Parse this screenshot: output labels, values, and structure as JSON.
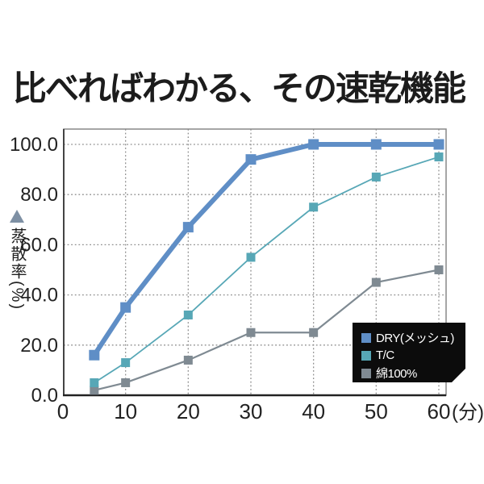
{
  "page": {
    "title": "比べればわかる、その速乾機能"
  },
  "chart_data": {
    "type": "line",
    "x": [
      5,
      10,
      20,
      30,
      40,
      50,
      60
    ],
    "xlim": [
      0,
      60
    ],
    "ylim": [
      0,
      100
    ],
    "x_ticks": [
      0,
      10,
      20,
      30,
      40,
      50,
      60
    ],
    "x_tick_suffix": "(分)",
    "y_ticks": [
      "100.0",
      "80.0",
      "60.0",
      "40.0",
      "20.0",
      "0.0"
    ],
    "y_tick_values": [
      100,
      80,
      60,
      40,
      20,
      0
    ],
    "ylabel": "蒸散率(%)",
    "ylabel_marker": "triangle-up",
    "grid": "dotted",
    "legend_position": "bottom-right-inside",
    "series": [
      {
        "name": "DRY(メッシュ)",
        "values": [
          16,
          35,
          67,
          94,
          100,
          100,
          100
        ],
        "color": "#5f8ec6",
        "marker": "square",
        "line_width": 6,
        "marker_size": 13
      },
      {
        "name": "T/C",
        "values": [
          5,
          13,
          32,
          55,
          75,
          87,
          95
        ],
        "color": "#57a7b6",
        "marker": "square",
        "line_width": 1.8,
        "marker_size": 11
      },
      {
        "name": "綿100%",
        "values": [
          2,
          5,
          14,
          25,
          25,
          45,
          50
        ],
        "color": "#7f8a92",
        "marker": "square",
        "line_width": 2.2,
        "marker_size": 11
      }
    ]
  },
  "colors": {
    "triangle_marker": "#7e90a4",
    "legend_background": "#0c0c0c",
    "legend_text": "#ffffff",
    "grid_line": "#8f8f8f",
    "axis_line": "#222222",
    "tick_text": "#222222",
    "title_text": "#1c1c1c"
  }
}
